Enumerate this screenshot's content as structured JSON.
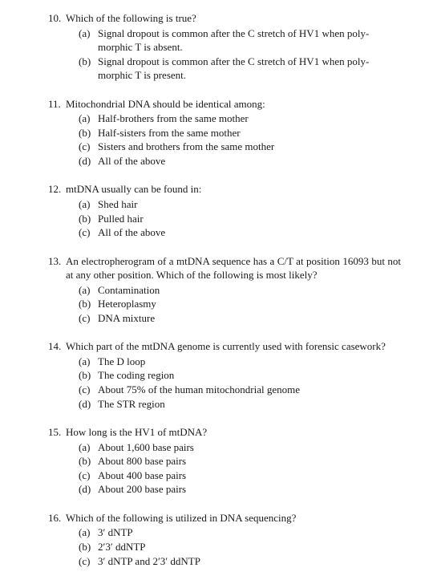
{
  "questions": [
    {
      "num": "10.",
      "stem": "Which of the following is true?",
      "options": [
        {
          "label": "(a)",
          "text": "Signal dropout is common after the C stretch of HV1 when poly-",
          "cont": "morphic T is absent."
        },
        {
          "label": "(b)",
          "text": "Signal dropout is common after the C stretch of HV1 when poly-",
          "cont": "morphic T is present."
        }
      ]
    },
    {
      "num": "11.",
      "stem": "Mitochondrial DNA should be identical among:",
      "options": [
        {
          "label": "(a)",
          "text": "Half-brothers from the same mother"
        },
        {
          "label": "(b)",
          "text": "Half-sisters from the same mother"
        },
        {
          "label": "(c)",
          "text": "Sisters and brothers from the same mother"
        },
        {
          "label": "(d)",
          "text": "All of the above"
        }
      ]
    },
    {
      "num": "12.",
      "stem": "mtDNA usually can be found in:",
      "options": [
        {
          "label": "(a)",
          "text": "Shed hair"
        },
        {
          "label": "(b)",
          "text": "Pulled hair"
        },
        {
          "label": "(c)",
          "text": "All of the above"
        }
      ]
    },
    {
      "num": "13.",
      "stem": "An electropherogram of a mtDNA sequence has a C/T at position 16093 but not at any other position. Which of the following is most likely?",
      "options": [
        {
          "label": "(a)",
          "text": "Contamination"
        },
        {
          "label": "(b)",
          "text": "Heteroplasmy"
        },
        {
          "label": "(c)",
          "text": "DNA mixture"
        }
      ]
    },
    {
      "num": "14.",
      "stem": "Which part of the mtDNA genome is currently used with forensic casework?",
      "options": [
        {
          "label": "(a)",
          "text": "The D loop"
        },
        {
          "label": "(b)",
          "text": "The coding region"
        },
        {
          "label": "(c)",
          "text": "About 75% of the human mitochondrial genome"
        },
        {
          "label": "(d)",
          "text": "The STR region"
        }
      ]
    },
    {
      "num": "15.",
      "stem": "How long is the HV1 of mtDNA?",
      "options": [
        {
          "label": "(a)",
          "text": "About 1,600 base pairs"
        },
        {
          "label": "(b)",
          "text": "About 800 base pairs"
        },
        {
          "label": "(c)",
          "text": "About 400 base pairs"
        },
        {
          "label": "(d)",
          "text": "About 200 base pairs"
        }
      ]
    },
    {
      "num": "16.",
      "stem": "Which of the following is utilized in DNA sequencing?",
      "options": [
        {
          "label": "(a)",
          "text": "3′ dNTP"
        },
        {
          "label": "(b)",
          "text": "2′3′ ddNTP"
        },
        {
          "label": "(c)",
          "text": "3′ dNTP and 2′3′ ddNTP"
        }
      ]
    }
  ]
}
